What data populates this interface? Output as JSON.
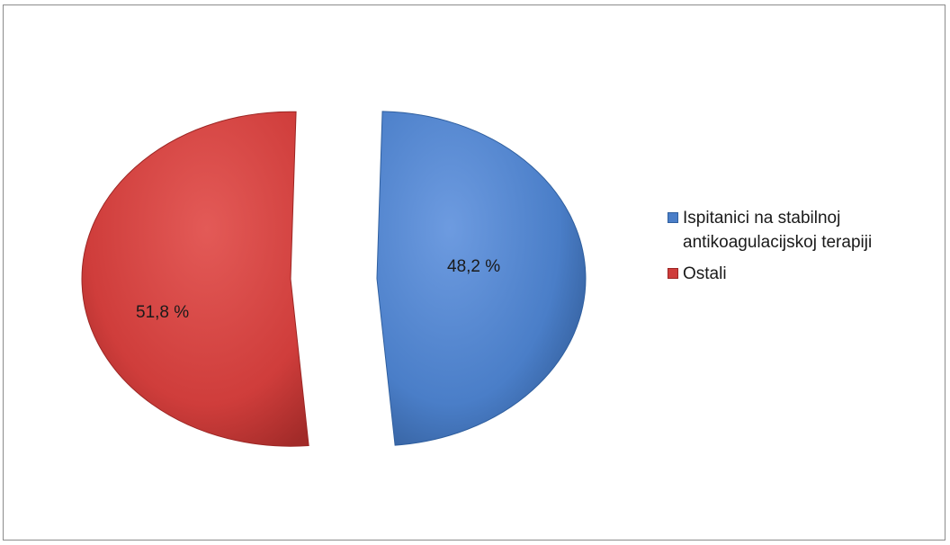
{
  "chart_data": {
    "type": "pie",
    "slices": [
      {
        "name": "Ispitanici na stabilnoj antikoagulacijskoj terapiji",
        "value": 48.2,
        "label": "48,2 %",
        "color": "#4a7ec8",
        "edge": "#2f5f9f"
      },
      {
        "name": "Ostali",
        "value": 51.8,
        "label": "51,8 %",
        "color": "#cf3d3b",
        "edge": "#9c2624"
      }
    ],
    "legend": {
      "placement": "right",
      "items": [
        {
          "text": "Ispitanici na stabilnoj antikoagulacijskoj terapiji",
          "color": "#4a7ec8"
        },
        {
          "text": "Ostali",
          "color": "#cf3d3b"
        }
      ]
    },
    "exploded": true
  }
}
